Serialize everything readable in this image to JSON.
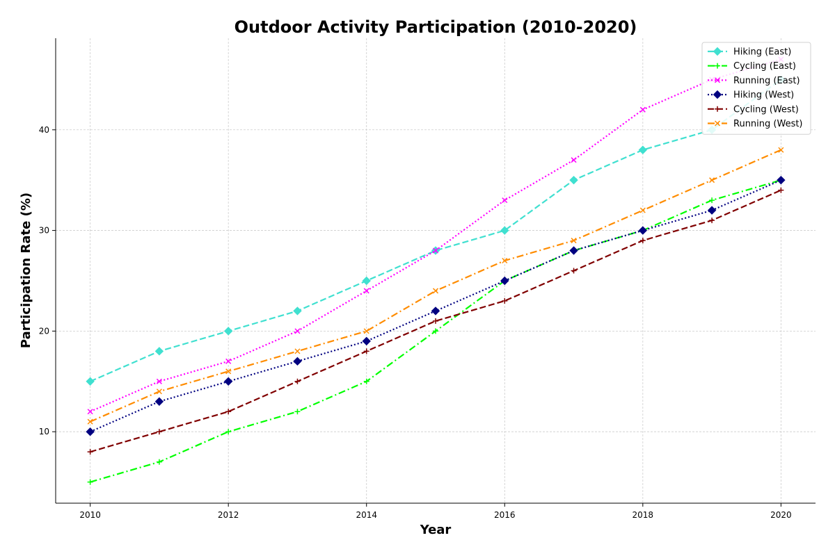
{
  "chart_data": {
    "type": "line",
    "title": "Outdoor Activity Participation (2010-2020)",
    "xlabel": "Year",
    "ylabel": "Participation Rate (%)",
    "x": [
      2010,
      2011,
      2012,
      2013,
      2014,
      2015,
      2016,
      2017,
      2018,
      2019,
      2020
    ],
    "xlim": [
      2009.5,
      2020.5
    ],
    "ylim": [
      2.9,
      49.1
    ],
    "xticks": [
      2010,
      2012,
      2014,
      2016,
      2018,
      2020
    ],
    "yticks": [
      10,
      20,
      30,
      40
    ],
    "grid": true,
    "legend_position": "top-right",
    "series": [
      {
        "name": "Hiking (East)",
        "values": [
          15,
          18,
          20,
          22,
          25,
          28,
          30,
          35,
          38,
          40,
          45
        ],
        "color": "#40E0D0",
        "linestyle": "dashed",
        "marker": "diamond"
      },
      {
        "name": "Cycling (East)",
        "values": [
          5,
          7,
          10,
          12,
          15,
          20,
          25,
          28,
          30,
          33,
          35
        ],
        "color": "#00FF00",
        "linestyle": "dashdot",
        "marker": "plus"
      },
      {
        "name": "Running (East)",
        "values": [
          12,
          15,
          17,
          20,
          24,
          28,
          33,
          37,
          42,
          45,
          47
        ],
        "color": "#FF00FF",
        "linestyle": "dotted",
        "marker": "x"
      },
      {
        "name": "Hiking (West)",
        "values": [
          10,
          13,
          15,
          17,
          19,
          22,
          25,
          28,
          30,
          32,
          35
        ],
        "color": "#000080",
        "linestyle": "dotted",
        "marker": "diamond"
      },
      {
        "name": "Cycling (West)",
        "values": [
          8,
          10,
          12,
          15,
          18,
          21,
          23,
          26,
          29,
          31,
          34
        ],
        "color": "#800000",
        "linestyle": "dashed",
        "marker": "plus"
      },
      {
        "name": "Running (West)",
        "values": [
          11,
          14,
          16,
          18,
          20,
          24,
          27,
          29,
          32,
          35,
          38
        ],
        "color": "#FF8C00",
        "linestyle": "dashdot",
        "marker": "x"
      }
    ]
  }
}
